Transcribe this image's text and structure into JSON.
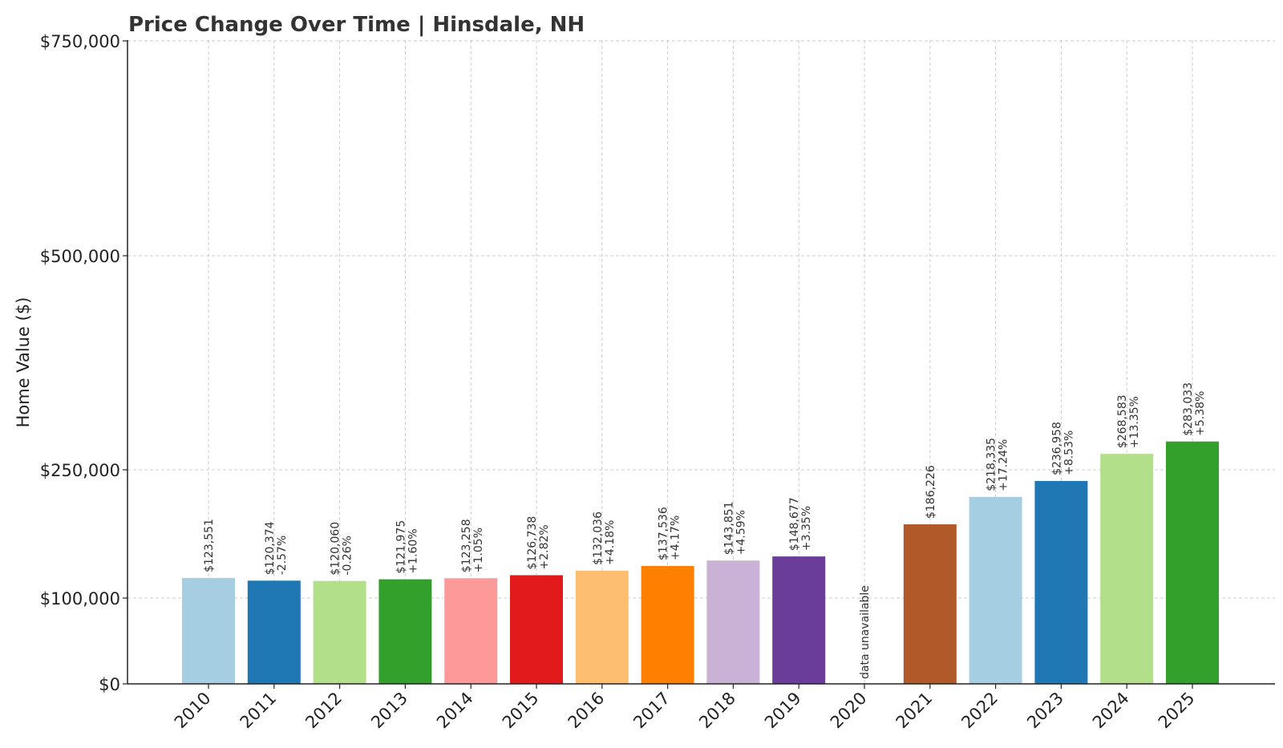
{
  "chart_data": {
    "type": "bar",
    "title": "Price Change Over Time | Hinsdale, NH",
    "ylabel": "Home Value ($)",
    "xlabel": "",
    "ylim": [
      0,
      750000
    ],
    "y_scale": "symlog-like (non-linear)",
    "yticks": [
      {
        "value": 0,
        "label": "$0"
      },
      {
        "value": 100000,
        "label": "$100,000"
      },
      {
        "value": 250000,
        "label": "$250,000"
      },
      {
        "value": 500000,
        "label": "$500,000"
      },
      {
        "value": 750000,
        "label": "$750,000"
      }
    ],
    "grid": true,
    "categories": [
      "2010",
      "2011",
      "2012",
      "2013",
      "2014",
      "2015",
      "2016",
      "2017",
      "2018",
      "2019",
      "2020",
      "2021",
      "2022",
      "2023",
      "2024",
      "2025"
    ],
    "values": [
      123551,
      120374,
      120060,
      121975,
      123258,
      126738,
      132036,
      137536,
      143851,
      148677,
      null,
      186226,
      218335,
      236958,
      268583,
      283033
    ],
    "value_labels": [
      "$123,551",
      "$120,374",
      "$120,060",
      "$121,975",
      "$123,258",
      "$126,738",
      "$132,036",
      "$137,536",
      "$143,851",
      "$148,677",
      "",
      "$186,226",
      "$218,335",
      "$236,958",
      "$268,583",
      "$283,033"
    ],
    "change_labels": [
      "",
      "-2.57%",
      "-0.26%",
      "+1.60%",
      "+1.05%",
      "+2.82%",
      "+4.18%",
      "+4.17%",
      "+4.59%",
      "+3.35%",
      "",
      "",
      "+17.24%",
      "+8.53%",
      "+13.35%",
      "+5.38%"
    ],
    "missing_label": "data unavailable",
    "colors": [
      "#a6cee3",
      "#1f78b4",
      "#b2df8a",
      "#33a02c",
      "#fb9a99",
      "#e31a1c",
      "#fdbf6f",
      "#ff7f00",
      "#cab2d6",
      "#6a3d9a",
      "#ffffff",
      "#b15928",
      "#a6cee3",
      "#1f78b4",
      "#b2df8a",
      "#33a02c"
    ]
  }
}
